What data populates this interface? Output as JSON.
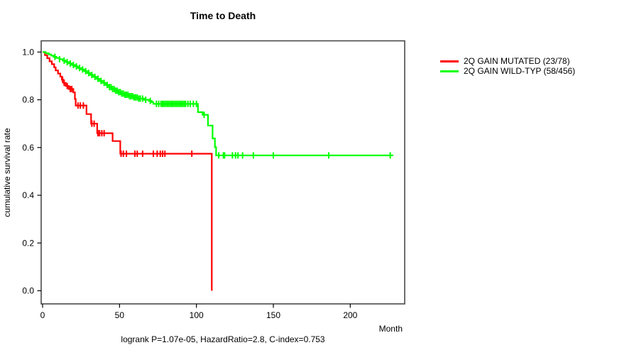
{
  "title": "Time to Death",
  "footer": "logrank P=1.07e-05, HazardRatio=2.8, C-index=0.753",
  "axes": {
    "x_label": "Month",
    "y_label": "cumulative survival rate",
    "x_ticks": [
      0,
      50,
      100,
      150,
      200
    ],
    "y_ticks": [
      "0.0",
      "0.2",
      "0.4",
      "0.6",
      "0.8",
      "1.0"
    ],
    "x_range": [
      0,
      235
    ],
    "y_range": [
      0,
      1
    ]
  },
  "legend": [
    {
      "label": "2Q GAIN MUTATED (23/78)",
      "color": "#ff0000"
    },
    {
      "label": "2Q GAIN WILD-TYP (58/456)",
      "color": "#00ff00"
    }
  ],
  "colors": {
    "mutated": "#ff0000",
    "wildtype": "#00ff00",
    "box": "#4a4a4a",
    "text": "#000000"
  },
  "chart_data": {
    "type": "line",
    "subtype": "kaplan-meier-step-function",
    "title": "Time to Death",
    "xlabel": "Month",
    "ylabel": "cumulative survival rate",
    "xlim": [
      0,
      235
    ],
    "ylim": [
      0,
      1
    ],
    "grid": false,
    "legend_position": "right-outside",
    "stats": {
      "logrank_p": "1.07e-05",
      "hazard_ratio": "2.8",
      "c_index": "0.753"
    },
    "series": [
      {
        "name": "2Q GAIN MUTATED (23/78)",
        "color": "#ff0000",
        "events": 23,
        "n": 78,
        "steps": [
          [
            0,
            1.0
          ],
          [
            1.5,
            0.987
          ],
          [
            3,
            0.974
          ],
          [
            4.5,
            0.961
          ],
          [
            6,
            0.949
          ],
          [
            7.5,
            0.936
          ],
          [
            8.5,
            0.923
          ],
          [
            10,
            0.91
          ],
          [
            11.5,
            0.897
          ],
          [
            12.5,
            0.884
          ],
          [
            13.5,
            0.871
          ],
          [
            15,
            0.858
          ],
          [
            17,
            0.845
          ],
          [
            20,
            0.831
          ],
          [
            21,
            0.803
          ],
          [
            21.5,
            0.776
          ],
          [
            28.5,
            0.74
          ],
          [
            31.5,
            0.7
          ],
          [
            35.5,
            0.66
          ],
          [
            45.5,
            0.627
          ],
          [
            50.5,
            0.574
          ],
          [
            110,
            0.574
          ],
          [
            110,
            0.0
          ]
        ],
        "censor_ticks": [
          13,
          14,
          16,
          18,
          19,
          23,
          24.5,
          26.5,
          32,
          33.5,
          36,
          37,
          38.5,
          40,
          51,
          52.5,
          54.5,
          60,
          61.5,
          65,
          72,
          74.5,
          76.5,
          78,
          79.5,
          97
        ]
      },
      {
        "name": "2Q GAIN WILD-TYP (58/456)",
        "color": "#00ff00",
        "events": 58,
        "n": 456,
        "steps": [
          [
            0,
            1.0
          ],
          [
            2,
            0.995
          ],
          [
            4,
            0.99
          ],
          [
            5.5,
            0.985
          ],
          [
            7,
            0.98
          ],
          [
            9,
            0.975
          ],
          [
            11,
            0.97
          ],
          [
            13,
            0.964
          ],
          [
            15,
            0.958
          ],
          [
            17,
            0.952
          ],
          [
            19,
            0.946
          ],
          [
            21,
            0.94
          ],
          [
            23,
            0.933
          ],
          [
            25,
            0.927
          ],
          [
            27,
            0.92
          ],
          [
            29,
            0.912
          ],
          [
            31,
            0.904
          ],
          [
            33,
            0.896
          ],
          [
            35,
            0.888
          ],
          [
            37,
            0.879
          ],
          [
            39,
            0.871
          ],
          [
            41,
            0.862
          ],
          [
            43,
            0.853
          ],
          [
            45,
            0.845
          ],
          [
            47,
            0.838
          ],
          [
            49,
            0.832
          ],
          [
            51,
            0.826
          ],
          [
            53,
            0.821
          ],
          [
            56,
            0.815
          ],
          [
            59,
            0.81
          ],
          [
            62,
            0.805
          ],
          [
            66,
            0.8
          ],
          [
            69,
            0.795
          ],
          [
            71,
            0.79
          ],
          [
            72,
            0.783
          ],
          [
            101,
            0.748
          ],
          [
            104,
            0.737
          ],
          [
            107.5,
            0.692
          ],
          [
            110.5,
            0.638
          ],
          [
            112,
            0.601
          ],
          [
            112.8,
            0.567
          ],
          [
            228,
            0.567
          ]
        ],
        "censor_ticks": [
          8,
          11,
          14,
          16,
          18,
          20,
          22,
          24,
          26,
          28,
          30,
          32,
          34,
          36,
          38,
          40,
          42,
          43.5,
          44.5,
          45.5,
          46.5,
          47.5,
          48.5,
          49.5,
          50.5,
          51.5,
          52.5,
          53.5,
          54.5,
          55.5,
          56.5,
          57.5,
          58.5,
          59.5,
          60.5,
          61.5,
          62.5,
          63.5,
          65,
          67,
          70,
          74,
          75.5,
          77,
          78,
          79,
          80,
          81,
          82,
          83,
          84,
          85,
          86,
          87,
          88,
          89,
          90,
          91,
          92,
          93,
          94.5,
          96,
          98,
          100,
          105,
          114.5,
          117.5,
          118.3,
          123.4,
          125.4,
          127,
          130,
          137,
          150,
          186,
          226
        ]
      }
    ]
  }
}
